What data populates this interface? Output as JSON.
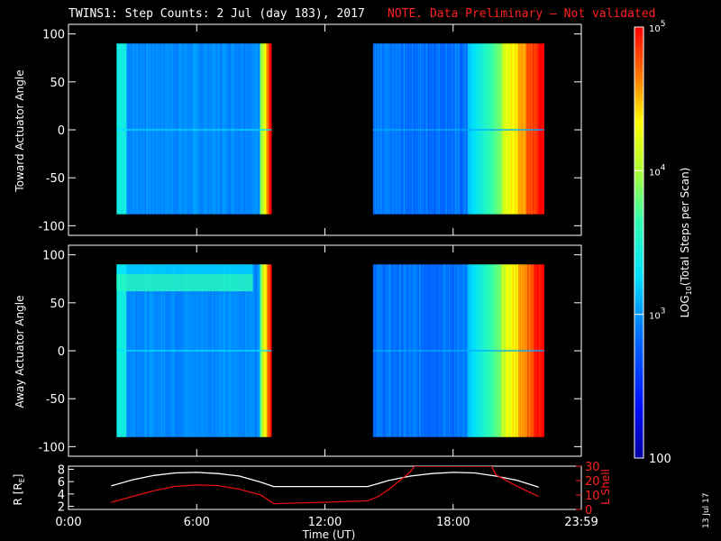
{
  "title": {
    "main": "TWINS1: Step Counts:  2 Jul (day 183), 2017",
    "note": "NOTE. Data Preliminary — Not validated"
  },
  "date_stamp": "13 Jul 17",
  "colors": {
    "note": "#ff2020",
    "frame": "#ffffff",
    "background": "#000000",
    "lshell_line": "#e01010",
    "r_line": "#ffffff"
  },
  "chart_data": [
    {
      "type": "heatmap",
      "panel": "toward",
      "ylabel": "Toward Actuator Angle",
      "ylim": [
        -110,
        110
      ],
      "yticks": [
        100,
        50,
        0,
        -50,
        -100
      ],
      "xlim": [
        0,
        24
      ],
      "data_blocks": [
        {
          "x_start": 2.25,
          "x_end": 9.5,
          "y_start": -88,
          "y_end": 90
        },
        {
          "x_start": 14.25,
          "x_end": 22.25,
          "y_start": -88,
          "y_end": 90
        }
      ],
      "value_pattern": "low (~1e3 to 2e3 counts) across most of each block, rising sharply to 1e4–1e5 near the end of each block"
    },
    {
      "type": "heatmap",
      "panel": "away",
      "ylabel": "Away Actuator Angle",
      "ylim": [
        -110,
        110
      ],
      "yticks": [
        100,
        50,
        0,
        -50,
        -100
      ],
      "xlim": [
        0,
        24
      ],
      "data_blocks": [
        {
          "x_start": 2.25,
          "x_end": 9.5,
          "y_start": -90,
          "y_end": 90
        },
        {
          "x_start": 14.25,
          "x_end": 22.25,
          "y_start": -90,
          "y_end": 90
        }
      ],
      "value_pattern": "low across most of each block with an elevated band near +70 deg in the first block; rising to 1e4–1e5 near the end of each block"
    },
    {
      "type": "colorbar",
      "label": "LOG10(Total Steps per Scan)",
      "label_base": "LOG",
      "label_sub": "10",
      "label_rest": "(Total Steps per Scan)",
      "scale": "log",
      "range": [
        100,
        100000
      ],
      "tick_labels": [
        {
          "value": 100,
          "text": "100"
        },
        {
          "value": 1000,
          "base": "10",
          "exp": "3"
        },
        {
          "value": 10000,
          "base": "10",
          "exp": "4"
        },
        {
          "value": 100000,
          "base": "10",
          "exp": "5"
        }
      ]
    },
    {
      "type": "line",
      "panel": "ephemeris",
      "xlabel": "Time (UT)",
      "xticks": [
        "0:00",
        "6:00",
        "12:00",
        "18:00",
        "23:59"
      ],
      "xtick_values": [
        0,
        6,
        12,
        18,
        24
      ],
      "xlim": [
        0,
        24
      ],
      "left_axis": {
        "label": "R [R",
        "label_sub": "E",
        "label_end": "]",
        "ylim": [
          1.5,
          8.5
        ],
        "yticks": [
          2,
          4,
          6,
          8
        ]
      },
      "right_axis": {
        "label": "L Shell",
        "ylim": [
          0,
          30
        ],
        "yticks": [
          0,
          10,
          20,
          30
        ]
      },
      "series": [
        {
          "axis": "left",
          "color": "#ffffff",
          "x": [
            2.0,
            3.0,
            4.0,
            5.0,
            6.0,
            7.0,
            8.0,
            9.0,
            9.6,
            12.0,
            14.0,
            14.5,
            15.0,
            16.0,
            17.0,
            18.0,
            19.0,
            20.0,
            21.0,
            22.0
          ],
          "y": [
            5.3,
            6.3,
            7.0,
            7.4,
            7.5,
            7.3,
            6.9,
            5.9,
            5.2,
            5.2,
            5.2,
            5.7,
            6.2,
            6.9,
            7.3,
            7.5,
            7.4,
            6.9,
            6.2,
            5.1
          ]
        },
        {
          "axis": "right",
          "color": "#e01010",
          "x": [
            2.0,
            3.0,
            4.0,
            5.0,
            6.0,
            7.0,
            8.0,
            9.0,
            9.6,
            12.0,
            14.0,
            14.5,
            15.0,
            16.0,
            16.2,
            19.8,
            20.0,
            21.0,
            22.0
          ],
          "y": [
            5.0,
            9.0,
            13.0,
            16.0,
            17.0,
            16.5,
            14.0,
            10.0,
            4.0,
            5.0,
            6.0,
            9.0,
            14.0,
            26.0,
            30.0,
            30.0,
            24.0,
            16.0,
            9.0
          ]
        }
      ]
    }
  ]
}
